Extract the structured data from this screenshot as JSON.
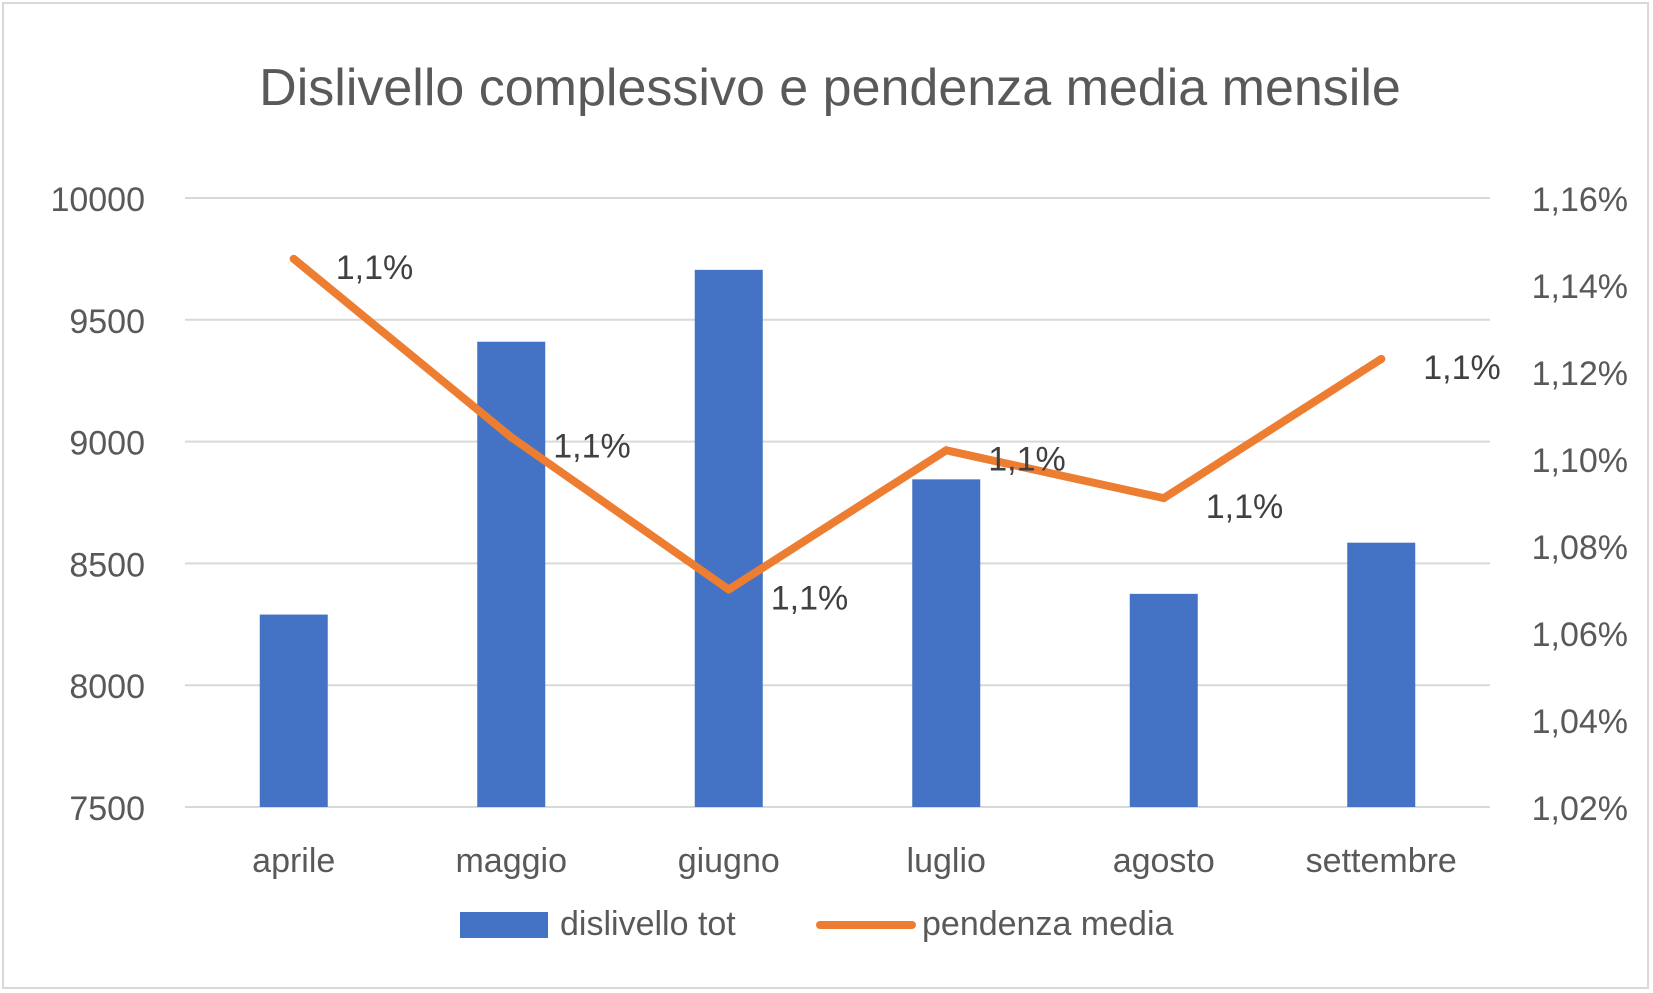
{
  "chart_data": {
    "type": "bar",
    "title": "Dislivello complessivo e pendenza media mensile",
    "categories": [
      "aprile",
      "maggio",
      "giugno",
      "luglio",
      "agosto",
      "settembre"
    ],
    "series": [
      {
        "name": "dislivello tot",
        "type": "bar",
        "axis": "left",
        "color": "#4472c4",
        "values": [
          8290,
          9410,
          9705,
          8845,
          8375,
          8585
        ]
      },
      {
        "name": "pendenza media",
        "type": "line",
        "axis": "right",
        "color": "#ed7d31",
        "values": [
          1.146,
          1.105,
          1.07,
          1.102,
          1.091,
          1.123
        ],
        "data_labels": [
          "1,1%",
          "1,1%",
          "1,1%",
          "1,1%",
          "1,1%",
          "1,1%"
        ]
      }
    ],
    "y_left": {
      "ylim": [
        7500,
        10000
      ],
      "ticks": [
        7500,
        8000,
        8500,
        9000,
        9500,
        10000
      ],
      "tick_labels": [
        "7500",
        "8000",
        "8500",
        "9000",
        "9500",
        "10000"
      ]
    },
    "y_right": {
      "ylim": [
        1.02,
        1.16
      ],
      "ticks": [
        1.02,
        1.04,
        1.06,
        1.08,
        1.1,
        1.12,
        1.14,
        1.16
      ],
      "tick_labels": [
        "1,02%",
        "1,04%",
        "1,06%",
        "1,08%",
        "1,10%",
        "1,12%",
        "1,14%",
        "1,16%"
      ]
    },
    "grid": true,
    "legend": "bottom"
  }
}
